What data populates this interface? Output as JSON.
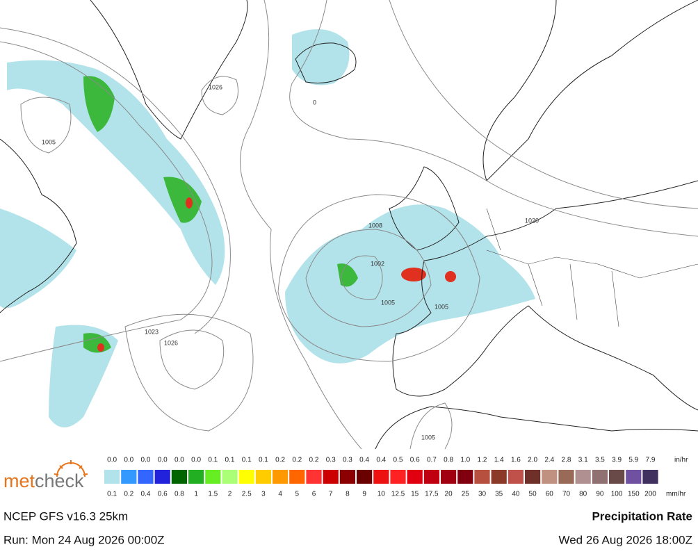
{
  "map": {
    "isobar_labels": [
      "1026",
      "1005",
      "0",
      "1008",
      "1002",
      "1005",
      "1005",
      "1020",
      "1023",
      "1026",
      "1005"
    ]
  },
  "legend": {
    "unit_top": "in/hr",
    "unit_bottom": "mm/hr",
    "in_labels": [
      "0.0",
      "0.0",
      "0.0",
      "0.0",
      "0.0",
      "0.0",
      "0.1",
      "0.1",
      "0.1",
      "0.1",
      "0.2",
      "0.2",
      "0.2",
      "0.3",
      "0.3",
      "0.4",
      "0.4",
      "0.5",
      "0.6",
      "0.7",
      "0.8",
      "1.0",
      "1.2",
      "1.4",
      "1.6",
      "2.0",
      "2.4",
      "2.8",
      "3.1",
      "3.5",
      "3.9",
      "5.9",
      "7.9"
    ],
    "mm_labels": [
      "0.1",
      "0.2",
      "0.4",
      "0.6",
      "0.8",
      "1",
      "1.5",
      "2",
      "2.5",
      "3",
      "4",
      "5",
      "6",
      "7",
      "8",
      "9",
      "10",
      "12.5",
      "15",
      "17.5",
      "20",
      "25",
      "30",
      "35",
      "40",
      "50",
      "60",
      "70",
      "80",
      "90",
      "100",
      "150",
      "200"
    ],
    "colors": [
      "#b3e3ea",
      "#3399ff",
      "#3366ff",
      "#2222dd",
      "#006400",
      "#22b022",
      "#66ee22",
      "#aaff77",
      "#ffff00",
      "#ffcc00",
      "#ff9900",
      "#ff6600",
      "#ff3333",
      "#cc0000",
      "#8b0000",
      "#6b0000",
      "#ee1111",
      "#ff2222",
      "#e00010",
      "#c00010",
      "#a00010",
      "#800010",
      "#b85040",
      "#8b3a2a",
      "#c0504a",
      "#70302a",
      "#c09080",
      "#9a6a58",
      "#b09090",
      "#907070",
      "#6a4a48",
      "#7050a0",
      "#403060"
    ]
  },
  "logo": {
    "prefix": "met",
    "suffix": "check"
  },
  "footer": {
    "model": "NCEP GFS v16.3 25km",
    "title": "Precipitation Rate",
    "run": "Run: Mon 24 Aug 2026 00:00Z",
    "valid": "Wed 26 Aug 2026 18:00Z"
  }
}
